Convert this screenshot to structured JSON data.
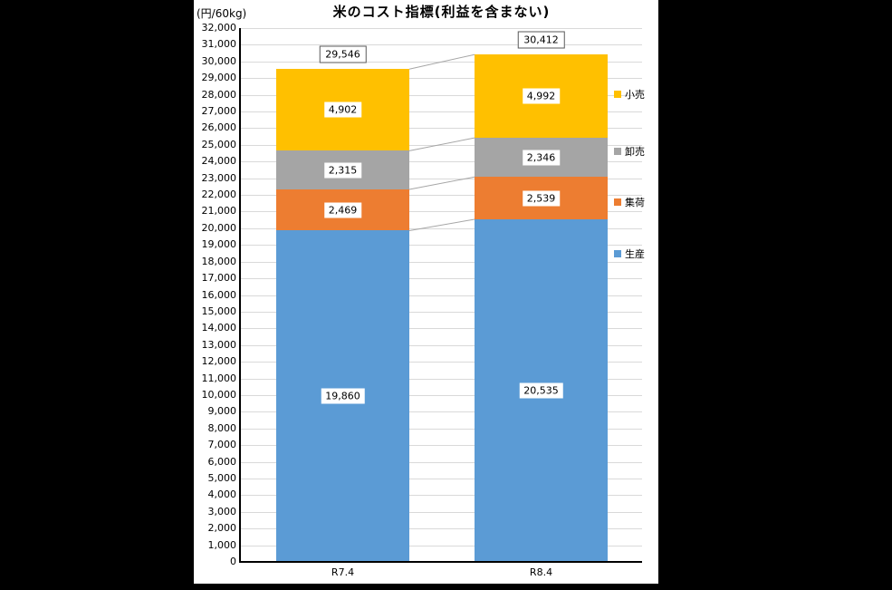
{
  "colors": {
    "background": "#000000",
    "chart_background": "#ffffff",
    "gridline": "#d9d9d9",
    "axis_line": "#000000",
    "connector_line": "#a6a6a6",
    "total_box_border": "#595959"
  },
  "chart_data": {
    "type": "bar",
    "stacked": true,
    "title": "米のコスト指標(利益を含まない)",
    "unit_label": "(円/60kg)",
    "categories": [
      "R7.4",
      "R8.4"
    ],
    "series": [
      {
        "name": "生産",
        "color": "#5b9bd5",
        "values": [
          19860,
          20535
        ],
        "labels": [
          "19,860",
          "20,535"
        ]
      },
      {
        "name": "集荷",
        "color": "#ed7d31",
        "values": [
          2469,
          2539
        ],
        "labels": [
          "2,469",
          "2,539"
        ]
      },
      {
        "name": "卸売",
        "color": "#a5a5a5",
        "values": [
          2315,
          2346
        ],
        "labels": [
          "2,315",
          "2,346"
        ]
      },
      {
        "name": "小売",
        "color": "#ffc000",
        "values": [
          4902,
          4992
        ],
        "labels": [
          "4,902",
          "4,992"
        ]
      }
    ],
    "totals": [
      29546,
      30412
    ],
    "total_labels": [
      "29,546",
      "30,412"
    ],
    "ylim": [
      0,
      32000
    ],
    "ytick_step": 1000,
    "grid": true,
    "legend_position": "right",
    "legend_order": [
      "小売",
      "卸売",
      "集荷",
      "生産"
    ]
  }
}
